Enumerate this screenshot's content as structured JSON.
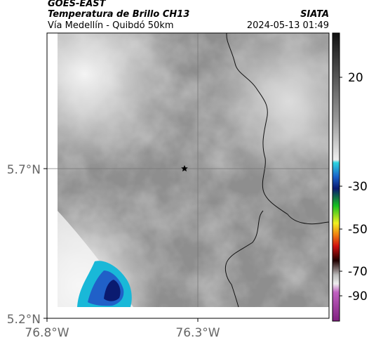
{
  "header": {
    "satellite": "GOES-EAST",
    "product": "Temperatura de Brillo CH13",
    "region": "Vía Medellín - Quibdó 50km",
    "source": "SIATA",
    "timestamp": "2024-05-13 01:49"
  },
  "map": {
    "lat_labels": [
      "5.7°N",
      "5.2°N"
    ],
    "lon_labels": [
      "76.8°W",
      "76.3°W"
    ]
  },
  "colorbar": {
    "ticks": [
      20,
      -30,
      -50,
      -70,
      -90
    ]
  }
}
